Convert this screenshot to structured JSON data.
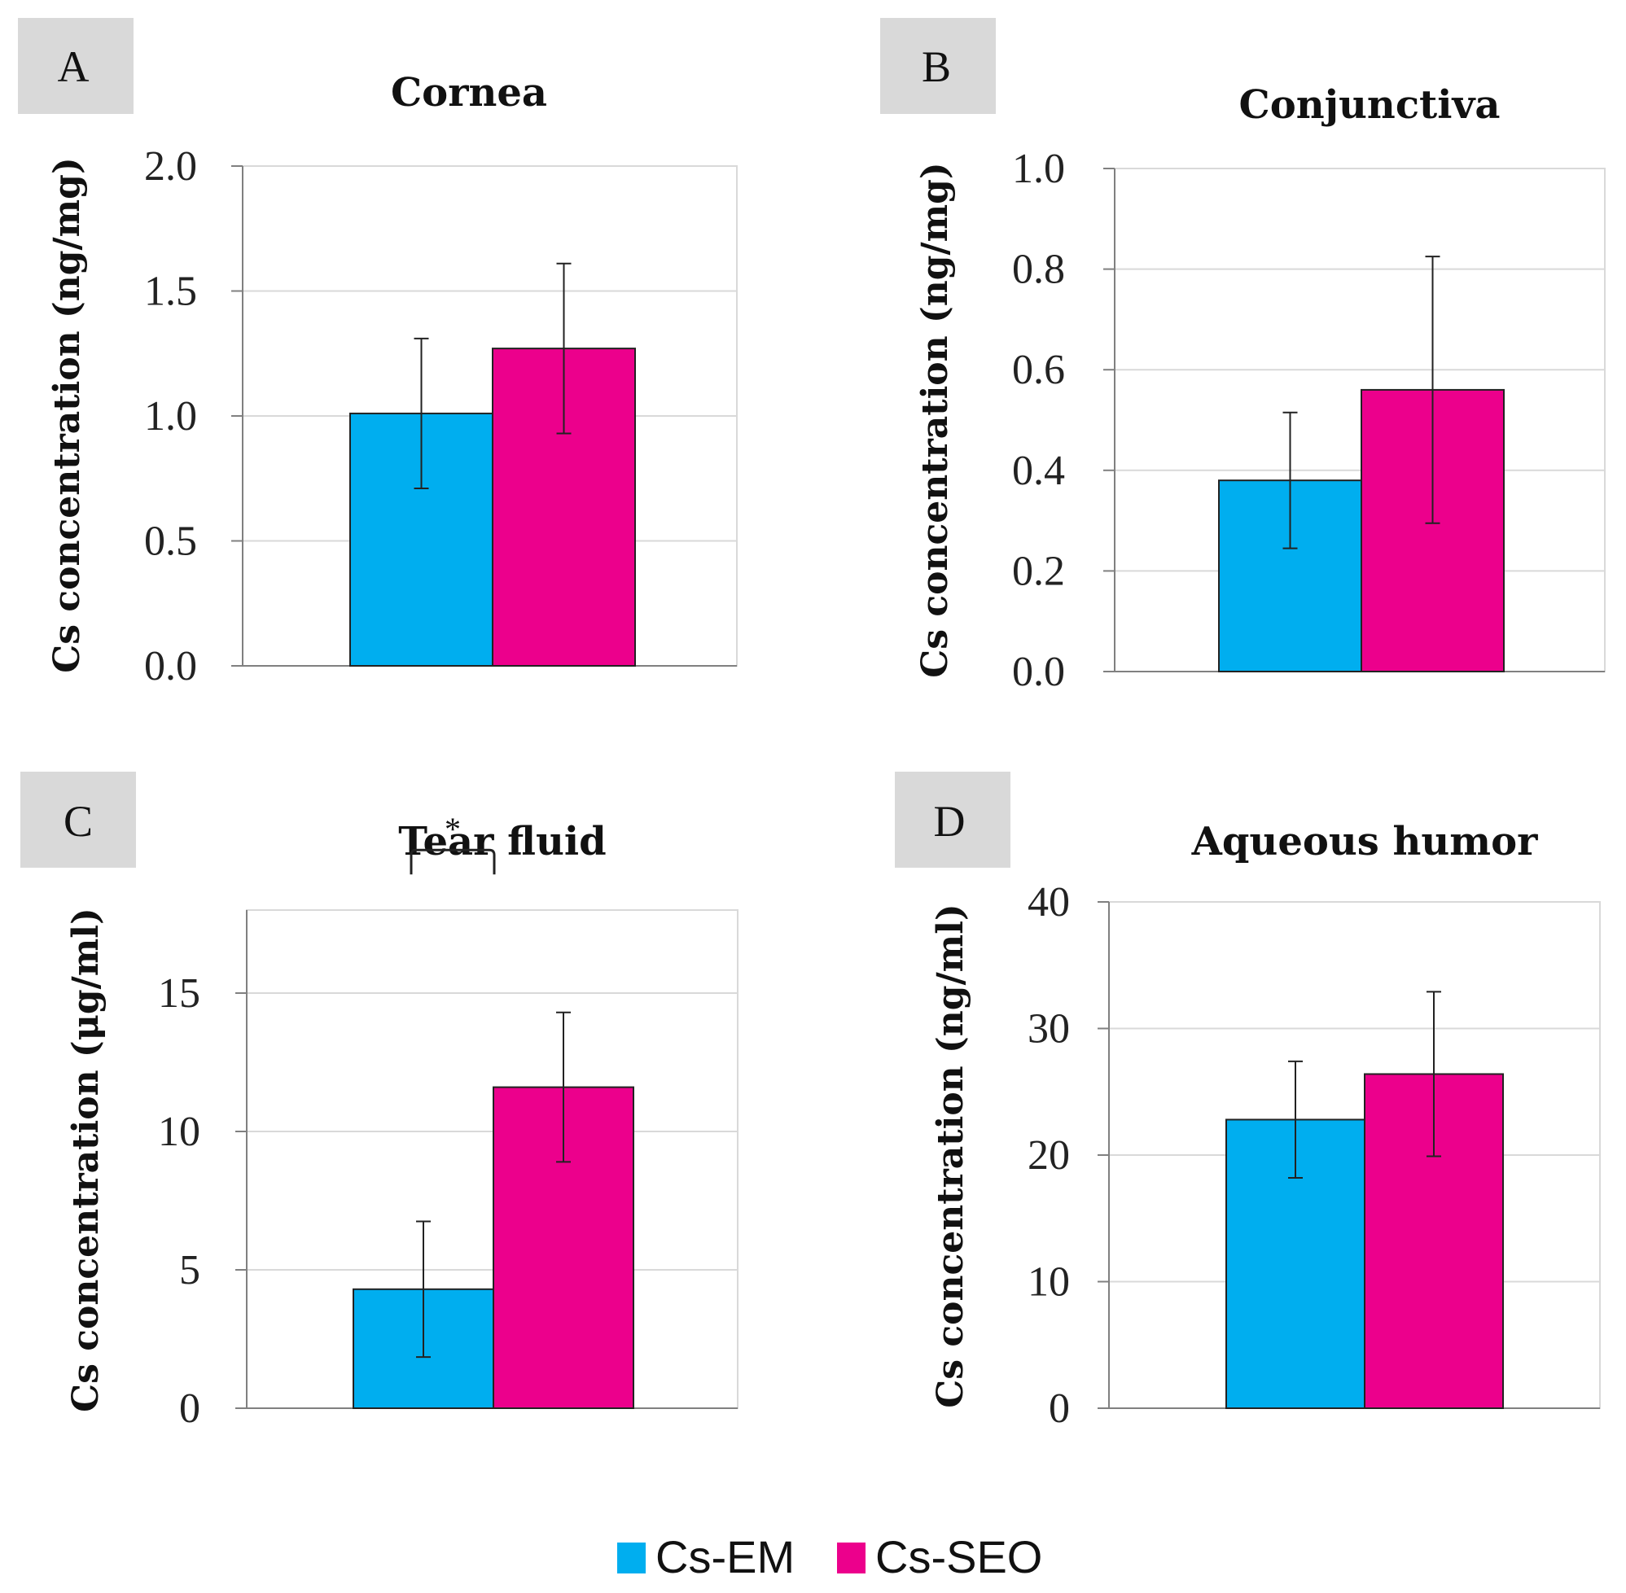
{
  "colors": {
    "em": "#00AEEF",
    "seo": "#EC008C",
    "panel_bg": "#D9D9D9",
    "grid": "#D9D9D9",
    "axis": "#808080"
  },
  "legend": {
    "items": [
      {
        "label": "Cs-EM",
        "color": "#00AEEF"
      },
      {
        "label": "Cs-SEO",
        "color": "#EC008C"
      }
    ]
  },
  "chart_data": [
    {
      "panel": "A",
      "type": "bar",
      "title": "Cornea",
      "ylabel": "Cs concentration (ng/mg)",
      "ylim": [
        0,
        2
      ],
      "yticks": [
        "0.0",
        "0.5",
        "1.0",
        "1.5",
        "2.0"
      ],
      "grid": true,
      "series": [
        {
          "name": "Cs-EM",
          "value": 1.01,
          "error": 0.3
        },
        {
          "name": "Cs-SEO",
          "value": 1.27,
          "error": 0.34
        }
      ],
      "annotation": ""
    },
    {
      "panel": "B",
      "type": "bar",
      "title": "Conjunctiva",
      "ylabel": "Cs concentration (ng/mg)",
      "ylim": [
        0,
        1
      ],
      "yticks": [
        "0.0",
        "0.2",
        "0.4",
        "0.6",
        "0.8",
        "1.0"
      ],
      "grid": true,
      "series": [
        {
          "name": "Cs-EM",
          "value": 0.38,
          "error": 0.135
        },
        {
          "name": "Cs-SEO",
          "value": 0.56,
          "error": 0.265
        }
      ],
      "annotation": ""
    },
    {
      "panel": "C",
      "type": "bar",
      "title": "Tear fluid",
      "ylabel": "Cs concentration (μg/ml)",
      "ylim": [
        0,
        18
      ],
      "yticks": [
        "0",
        "5",
        "10",
        "15"
      ],
      "grid": true,
      "series": [
        {
          "name": "Cs-EM",
          "value": 4.3,
          "error": 2.45
        },
        {
          "name": "Cs-SEO",
          "value": 11.6,
          "error": 2.7
        }
      ],
      "annotation": "*"
    },
    {
      "panel": "D",
      "type": "bar",
      "title": "Aqueous humor",
      "ylabel": "Cs concentration (ng/ml)",
      "ylim": [
        0,
        40
      ],
      "yticks": [
        "0",
        "10",
        "20",
        "30",
        "40"
      ],
      "grid": true,
      "series": [
        {
          "name": "Cs-EM",
          "value": 22.8,
          "error": 4.6
        },
        {
          "name": "Cs-SEO",
          "value": 26.4,
          "error": 6.5
        }
      ],
      "annotation": ""
    }
  ]
}
